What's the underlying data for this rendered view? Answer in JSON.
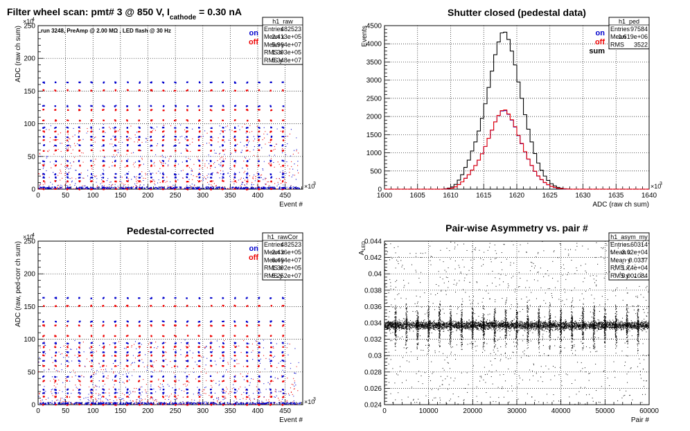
{
  "page": {
    "background": "#ffffff",
    "colors": {
      "on": "#0000cc",
      "off": "#ee0000",
      "sum": "#000000",
      "axis": "#000000",
      "grid": "#000000"
    }
  },
  "chart_data": [
    {
      "id": "raw",
      "type": "scatter",
      "title": "Filter wheel scan: pmt#  3 @   850 V, I",
      "title_sub": "cathode",
      "title_tail": "= 0.30 nA",
      "annotation": "run 3248, PreAmp @ 2.00 MΩ , LED flash @   30 Hz",
      "xlabel": "Event #",
      "ylabel": "ADC (raw ch sum)",
      "x_exponent": "×10",
      "x_exp_power": "3",
      "y_exponent": "×10",
      "y_exp_power": "4",
      "xlim": [
        0,
        482
      ],
      "ylim": [
        0,
        250
      ],
      "xticks": [
        0,
        50,
        100,
        150,
        200,
        250,
        300,
        350,
        400,
        450
      ],
      "yticks": [
        0,
        50,
        100,
        150,
        200,
        250
      ],
      "grid": true,
      "legend": {
        "position": "top-right",
        "entries": [
          {
            "name": "on",
            "color": "#0000cc"
          },
          {
            "name": "off",
            "color": "#ee0000"
          }
        ]
      },
      "stats": {
        "name": "h1_raw",
        "rows": [
          [
            "Entries",
            "482523"
          ],
          [
            "Mean x",
            "2.413e+05"
          ],
          [
            "Mean y",
            "5.964e+07"
          ],
          [
            "RMS x",
            "1.393e+05"
          ],
          [
            "RMS y",
            "5.348e+07"
          ]
        ]
      },
      "levels": {
        "on": [
          163,
          127,
          94,
          80,
          67,
          43,
          23,
          18,
          2
        ],
        "off": [
          151,
          121,
          105,
          88,
          75,
          59,
          36,
          12,
          0
        ]
      }
    },
    {
      "id": "ped",
      "type": "step",
      "title": "Shutter closed (pedestal data)",
      "xlabel": "ADC (raw ch sum)",
      "ylabel": "Events",
      "x_exponent": "×10",
      "x_exp_power": "3",
      "xlim": [
        1600,
        1640
      ],
      "ylim": [
        0,
        4500
      ],
      "xticks": [
        1600,
        1605,
        1610,
        1615,
        1620,
        1625,
        1630,
        1635,
        1640
      ],
      "yticks": [
        0,
        500,
        1000,
        1500,
        2000,
        2500,
        3000,
        3500,
        4000,
        4500
      ],
      "grid": true,
      "legend": {
        "position": "top-right",
        "entries": [
          {
            "name": "on",
            "color": "#0000cc"
          },
          {
            "name": "off",
            "color": "#ee0000"
          },
          {
            "name": "sum",
            "color": "#000000"
          }
        ]
      },
      "stats": {
        "name": "h1_ped",
        "rows": [
          [
            "Entries",
            "97584"
          ],
          [
            "Mean",
            "1.619e+06"
          ],
          [
            "RMS",
            "3522"
          ]
        ]
      },
      "series": [
        {
          "name": "sum",
          "color": "#000000",
          "bin_start": 1600,
          "bin_width": 0.5,
          "values": [
            0,
            0,
            0,
            0,
            0,
            0,
            0,
            0,
            0,
            0,
            0,
            0,
            0,
            0,
            0,
            0,
            0,
            0,
            10,
            30,
            60,
            130,
            250,
            400,
            600,
            800,
            1050,
            1300,
            1600,
            1950,
            2350,
            2800,
            3250,
            3700,
            4050,
            4300,
            4320,
            4120,
            3800,
            3420,
            2950,
            2500,
            2050,
            1650,
            1300,
            980,
            720,
            520,
            360,
            240,
            150,
            90,
            50,
            25,
            12,
            5,
            0,
            0,
            0,
            0,
            0,
            0,
            0,
            0,
            0,
            0,
            0,
            0,
            0,
            0,
            0,
            0,
            0,
            0,
            0,
            0,
            0,
            0,
            0,
            0
          ]
        },
        {
          "name": "on",
          "color": "#0000cc",
          "bin_start": 1600,
          "bin_width": 0.5,
          "values": [
            0,
            0,
            0,
            0,
            0,
            0,
            0,
            0,
            0,
            0,
            0,
            0,
            0,
            0,
            0,
            0,
            0,
            0,
            5,
            15,
            30,
            65,
            125,
            200,
            300,
            400,
            525,
            650,
            800,
            975,
            1175,
            1400,
            1625,
            1850,
            2025,
            2150,
            2160,
            2060,
            1900,
            1710,
            1475,
            1250,
            1025,
            825,
            650,
            490,
            360,
            260,
            180,
            120,
            75,
            45,
            25,
            12,
            6,
            2,
            0,
            0,
            0,
            0,
            0,
            0,
            0,
            0,
            0,
            0,
            0,
            0,
            0,
            0,
            0,
            0,
            0,
            0,
            0,
            0,
            0,
            0,
            0,
            0
          ]
        },
        {
          "name": "off",
          "color": "#ee0000",
          "bin_start": 1600,
          "bin_width": 0.5,
          "values": [
            0,
            0,
            0,
            0,
            0,
            0,
            0,
            0,
            0,
            0,
            0,
            0,
            0,
            0,
            0,
            0,
            0,
            0,
            5,
            15,
            30,
            65,
            125,
            200,
            300,
            400,
            525,
            650,
            800,
            975,
            1175,
            1400,
            1625,
            1850,
            2030,
            2160,
            2180,
            2070,
            1910,
            1720,
            1480,
            1260,
            1030,
            830,
            655,
            495,
            365,
            265,
            185,
            125,
            78,
            48,
            27,
            14,
            7,
            3,
            0,
            0,
            0,
            0,
            0,
            0,
            0,
            0,
            0,
            0,
            0,
            0,
            0,
            0,
            0,
            0,
            0,
            0,
            0,
            0,
            0,
            0,
            0,
            0
          ]
        }
      ]
    },
    {
      "id": "rawcor",
      "type": "scatter",
      "title": "Pedestal-corrected",
      "xlabel": "Event #",
      "ylabel": "ADC (raw, ped-corr ch sum)",
      "x_exponent": "×10",
      "x_exp_power": "3",
      "y_exponent": "×10",
      "y_exp_power": "4",
      "xlim": [
        0,
        482
      ],
      "ylim": [
        0,
        250
      ],
      "xticks": [
        0,
        50,
        100,
        150,
        200,
        250,
        300,
        350,
        400,
        450
      ],
      "yticks": [
        0,
        50,
        100,
        150,
        200,
        250
      ],
      "grid": true,
      "legend": {
        "position": "top-right",
        "entries": [
          {
            "name": "on",
            "color": "#0000cc"
          },
          {
            "name": "off",
            "color": "#ee0000"
          }
        ]
      },
      "stats": {
        "name": "h1_rawCor",
        "rows": [
          [
            "Entries",
            "482523"
          ],
          [
            "Mean x",
            "2.436e+05"
          ],
          [
            "Mean y",
            "6.464e+07"
          ],
          [
            "RMS x",
            "1.392e+05"
          ],
          [
            "RMS y",
            "5.252e+07"
          ]
        ]
      },
      "levels": {
        "on": [
          163,
          127,
          94,
          80,
          67,
          43,
          23,
          18,
          2
        ],
        "off": [
          151,
          121,
          105,
          88,
          75,
          59,
          36,
          12,
          0
        ]
      }
    },
    {
      "id": "asym",
      "type": "scatter",
      "title": "Pair-wise Asymmetry vs. pair #",
      "xlabel": "Pair #",
      "ylabel": "A",
      "ylabel_sub": "LED",
      "xlim": [
        0,
        60000
      ],
      "ylim": [
        0.024,
        0.044
      ],
      "xticks": [
        0,
        10000,
        20000,
        30000,
        40000,
        50000,
        60000
      ],
      "yticks": [
        0.024,
        0.026,
        0.028,
        0.03,
        0.032,
        0.034,
        0.036,
        0.038,
        0.04,
        0.042,
        0.044
      ],
      "grid": true,
      "stats": {
        "name": "h1_asym_my",
        "rows": [
          [
            "Entries",
            "60314"
          ],
          [
            "Mean x",
            "3.02e+04"
          ],
          [
            "Mean y",
            "0.0337"
          ],
          [
            "RMS x",
            "1.74e+04"
          ],
          [
            "RMS y",
            "0.001084"
          ]
        ]
      },
      "band_center": 0.0337,
      "spike_spacing": 2500,
      "spike_first": 2500
    }
  ]
}
